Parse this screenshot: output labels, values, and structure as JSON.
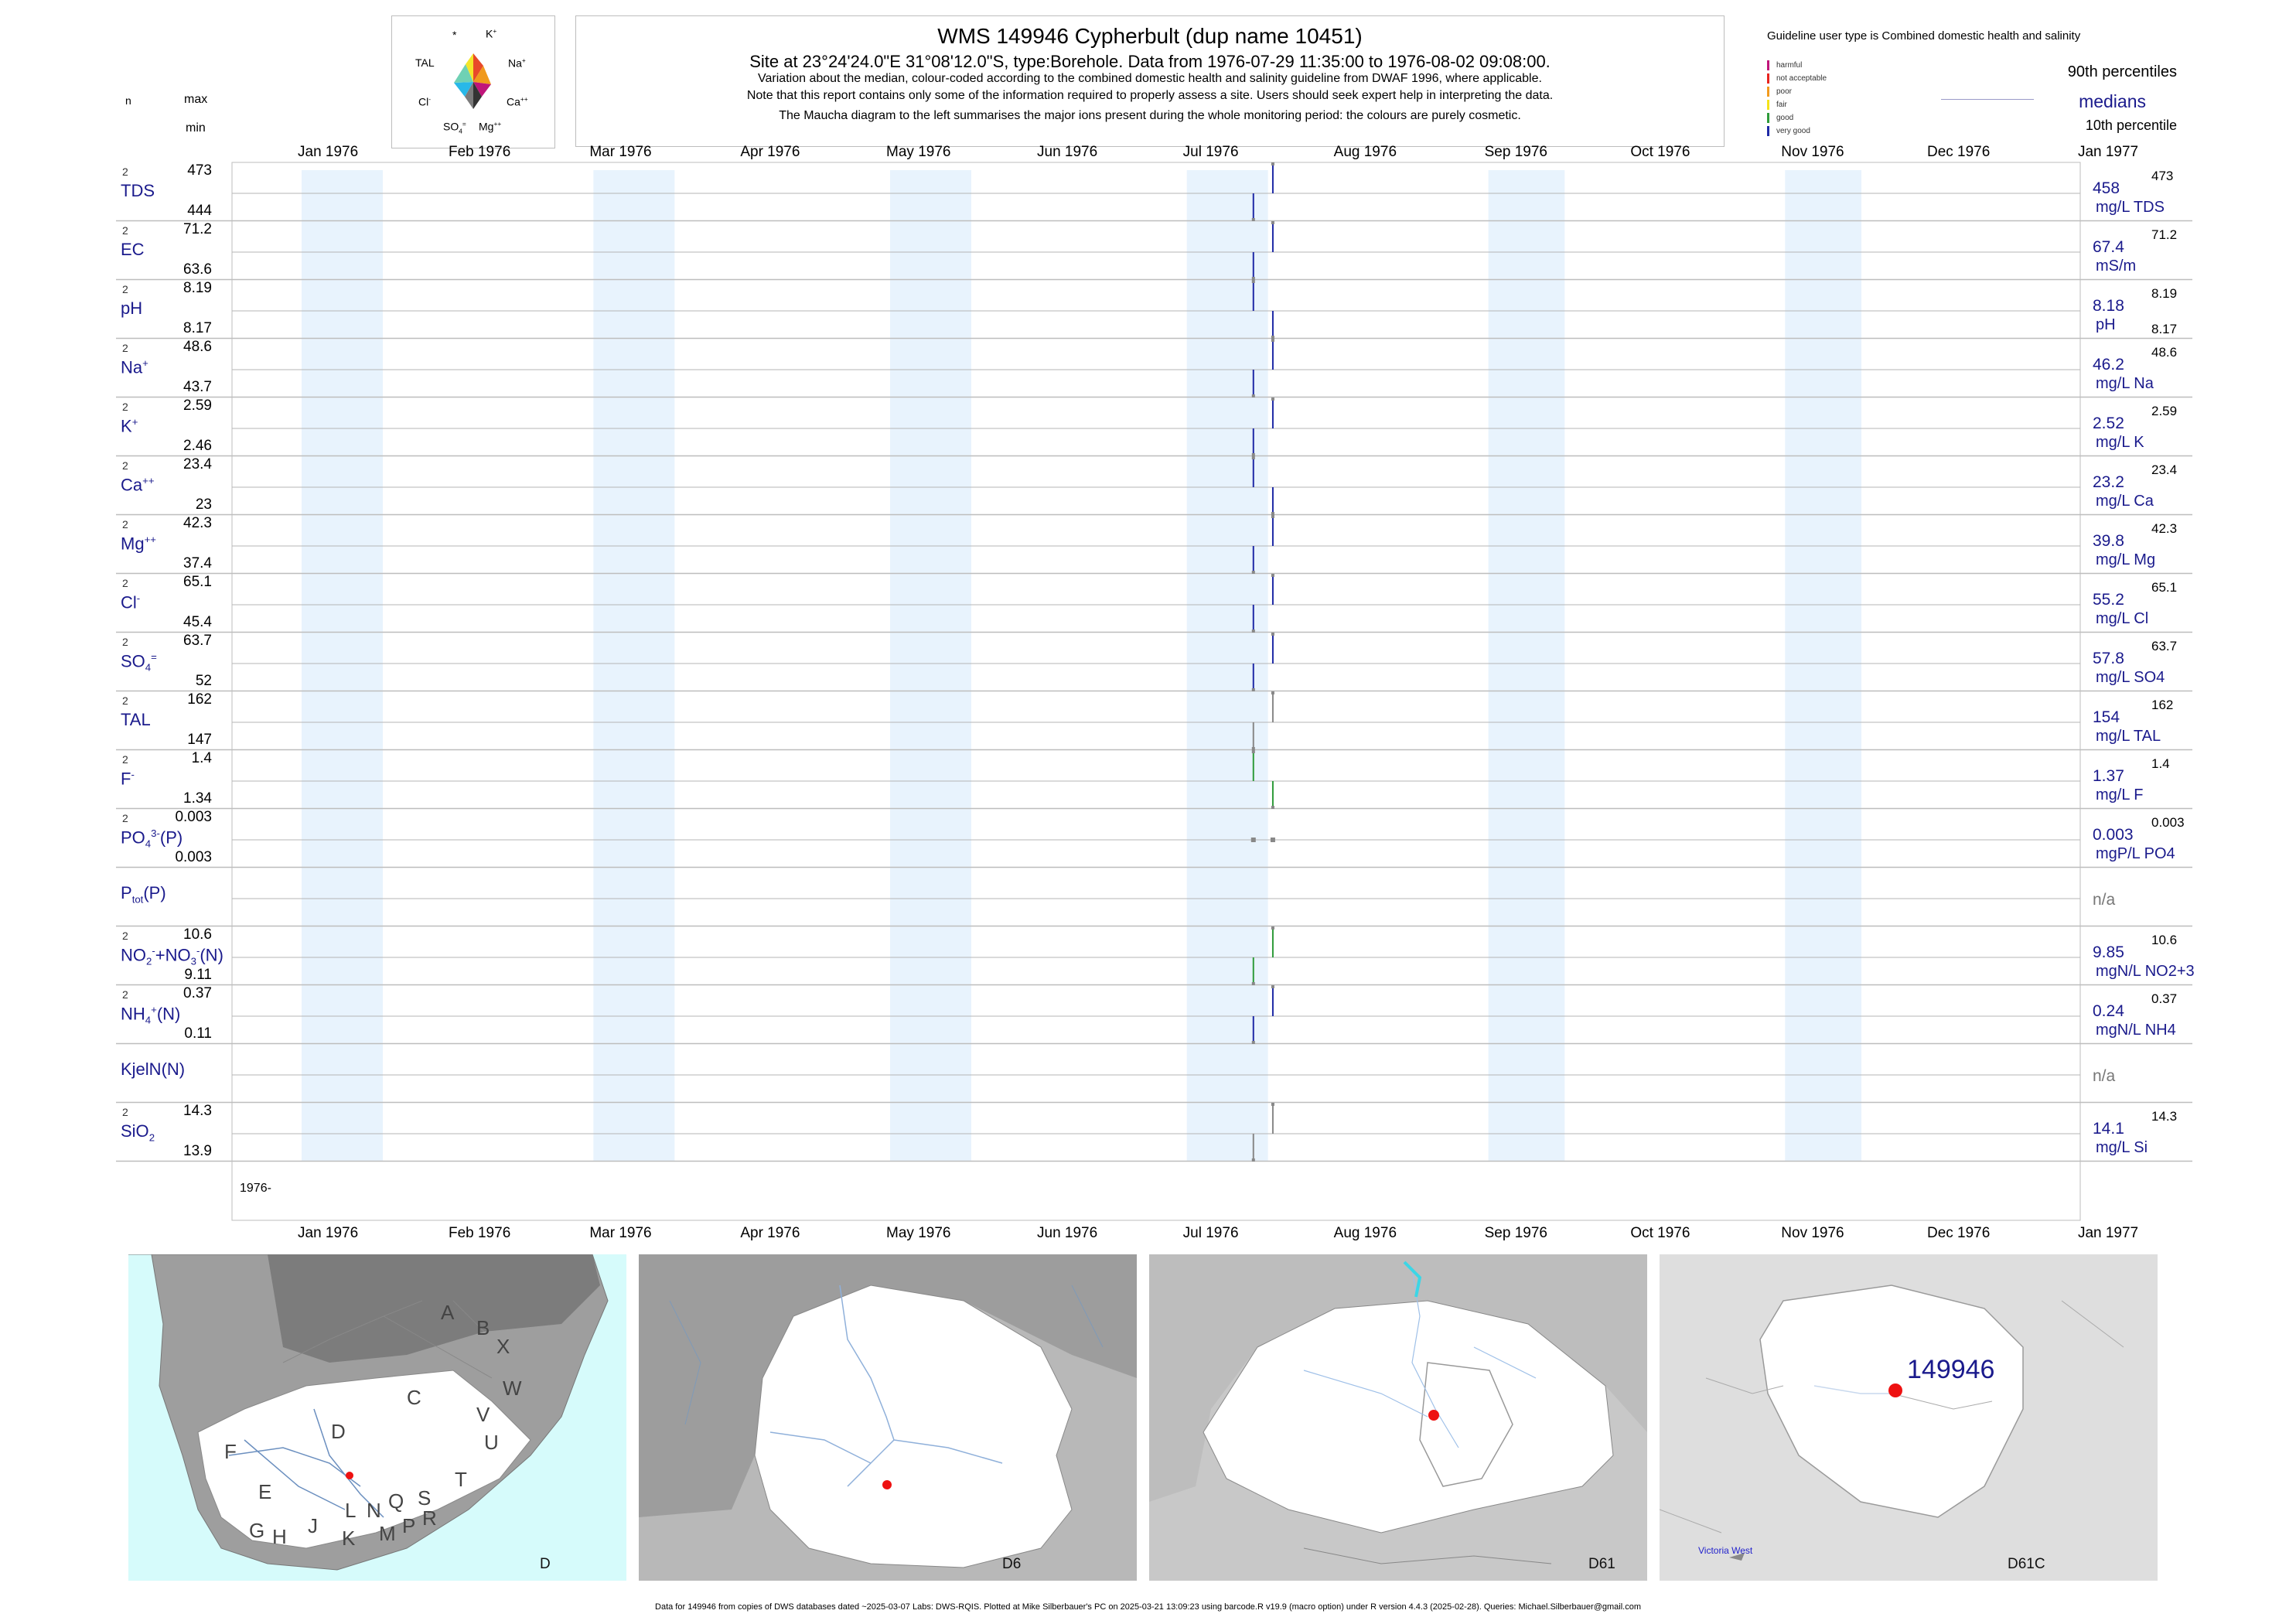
{
  "header": {
    "title": "WMS 149946  Cypherbult (dup name 10451)",
    "subtitle": "Site at 23°24'24.0\"E 31°08'12.0\"S, type:Borehole.  Data from 1976-07-29 11:35:00 to 1976-08-02 09:08:00.",
    "note1": "Variation about the median,  colour-coded according to the combined domestic health and salinity guideline from DWAF 1996, where applicable.",
    "note2": "Note that this report contains only some of the information required to properly assess a site. Users should seek expert help in interpreting the data.",
    "note3": "The Maucha diagram to the left summarises the major ions present during the whole monitoring period: the colours are purely cosmetic."
  },
  "maucha": {
    "labels": {
      "star": "*",
      "k": "K",
      "k_sup": "+",
      "tal": "TAL",
      "na": "Na",
      "na_sup": "+",
      "cl": "Cl",
      "cl_sup": "-",
      "ca": "Ca",
      "ca_sup": "++",
      "so4": "SO",
      "so4_sub": "4",
      "so4_sup": "=",
      "mg": "Mg",
      "mg_sup": "++"
    }
  },
  "guideline": {
    "title": "Guideline user type is Combined domestic health and salinity",
    "classes": [
      {
        "label": "harmful",
        "color": "#c0157a"
      },
      {
        "label": "not acceptable",
        "color": "#e8241f"
      },
      {
        "label": "poor",
        "color": "#f29b1d"
      },
      {
        "label": "fair",
        "color": "#f5e31a"
      },
      {
        "label": "good",
        "color": "#2e9b3a"
      },
      {
        "label": "very good",
        "color": "#1f2aa6"
      }
    ],
    "p90": "90th percentiles",
    "medians": "medians",
    "p10": "10th percentile"
  },
  "left_header": {
    "n": "n",
    "max": "max",
    "min": "min"
  },
  "colors": {
    "navy": "#1a1a8c",
    "band": "#e8f3fd",
    "grid": "#bdbdbd",
    "very_good": "#1f2aa6",
    "good": "#2e9b3a",
    "marker": "#888888",
    "site": "#ee1111",
    "sea": "#d6fbfb"
  },
  "chart_data": {
    "type": "line",
    "x_range": [
      "1976-01-01",
      "1977-01-15"
    ],
    "sample_dates": [
      "1976-07-29",
      "1976-08-02"
    ],
    "months": [
      "Jan 1976",
      "Feb 1976",
      "Mar 1976",
      "Apr 1976",
      "May 1976",
      "Jun 1976",
      "Jul 1976",
      "Aug 1976",
      "Sep 1976",
      "Oct 1976",
      "Nov 1976",
      "Dec 1976",
      "Jan 1977"
    ],
    "year_label": "1976-",
    "series": [
      {
        "label": "TDS",
        "n": "2",
        "max": "473",
        "min": "444",
        "median": "458",
        "unit": "mg/L TDS",
        "rmax": "473",
        "rmin": "",
        "values": [
          444,
          473
        ],
        "color": "very_good"
      },
      {
        "label": "EC",
        "n": "2",
        "max": "71.2",
        "min": "63.6",
        "median": "67.4",
        "unit": "mS/m",
        "rmax": "71.2",
        "rmin": "",
        "values": [
          63.6,
          71.2
        ],
        "color": "very_good"
      },
      {
        "label": "pH",
        "n": "2",
        "max": "8.19",
        "min": "8.17",
        "median": "8.18",
        "unit": "pH",
        "rmax": "8.19",
        "rmin": "8.17",
        "values": [
          8.19,
          8.17
        ],
        "color": "very_good"
      },
      {
        "label": "Na",
        "sup": "+",
        "n": "2",
        "max": "48.6",
        "min": "43.7",
        "median": "46.2",
        "unit": "mg/L Na",
        "rmax": "48.6",
        "rmin": "",
        "values": [
          43.7,
          48.6
        ],
        "color": "very_good"
      },
      {
        "label": "K",
        "sup": "+",
        "n": "2",
        "max": "2.59",
        "min": "2.46",
        "median": "2.52",
        "unit": "mg/L K",
        "rmax": "2.59",
        "rmin": "",
        "values": [
          2.46,
          2.59
        ],
        "color": "very_good"
      },
      {
        "label": "Ca",
        "sup": "++",
        "n": "2",
        "max": "23.4",
        "min": "23",
        "median": "23.2",
        "unit": "mg/L Ca",
        "rmax": "23.4",
        "rmin": "",
        "values": [
          23.4,
          23
        ],
        "color": "very_good"
      },
      {
        "label": "Mg",
        "sup": "++",
        "n": "2",
        "max": "42.3",
        "min": "37.4",
        "median": "39.8",
        "unit": "mg/L Mg",
        "rmax": "42.3",
        "rmin": "",
        "values": [
          37.4,
          42.3
        ],
        "color": "very_good"
      },
      {
        "label": "Cl",
        "sup": "-",
        "n": "2",
        "max": "65.1",
        "min": "45.4",
        "median": "55.2",
        "unit": "mg/L Cl",
        "rmax": "65.1",
        "rmin": "",
        "values": [
          45.4,
          65.1
        ],
        "color": "very_good"
      },
      {
        "label": "SO",
        "sub": "4",
        "sup": "=",
        "n": "2",
        "max": "63.7",
        "min": "52",
        "median": "57.8",
        "unit": "mg/L SO4",
        "rmax": "63.7",
        "rmin": "",
        "values": [
          52,
          63.7
        ],
        "color": "very_good"
      },
      {
        "label": "TAL",
        "n": "2",
        "max": "162",
        "min": "147",
        "median": "154",
        "unit": "mg/L TAL",
        "rmax": "162",
        "rmin": "",
        "values": [
          147,
          162
        ],
        "color": "marker"
      },
      {
        "label": "F",
        "sup": "-",
        "n": "2",
        "max": "1.4",
        "min": "1.34",
        "median": "1.37",
        "unit": "mg/L F",
        "rmax": "1.4",
        "rmin": "",
        "values": [
          1.4,
          1.34
        ],
        "color": "good"
      },
      {
        "label": "PO",
        "sub": "4",
        "sup": "3-",
        "suffix": "(P)",
        "n": "2",
        "max": "0.003",
        "min": "0.003",
        "median": "0.003",
        "unit": "mgP/L PO4",
        "rmax": "0.003",
        "rmin": "",
        "values": [
          0.003,
          0.003
        ],
        "color": "marker"
      },
      {
        "label": "P",
        "sub": "tot",
        "suffix": "(P)",
        "n": "",
        "max": "",
        "min": "",
        "median": "n/a",
        "unit": "",
        "rmax": "",
        "rmin": "",
        "values": [],
        "color": "marker"
      },
      {
        "label": "NO",
        "sub": "2",
        "sup": "-",
        "suffix": "+NO",
        "sub2": "3",
        "sup2": "-",
        "suffix2": "(N)",
        "n": "2",
        "max": "10.6",
        "min": "9.11",
        "median": "9.85",
        "unit": "mgN/L NO2+3",
        "rmax": "10.6",
        "rmin": "",
        "values": [
          9.11,
          10.6
        ],
        "color": "good"
      },
      {
        "label": "NH",
        "sub": "4",
        "sup": "+",
        "suffix": "(N)",
        "n": "2",
        "max": "0.37",
        "min": "0.11",
        "median": "0.24",
        "unit": "mgN/L NH4",
        "rmax": "0.37",
        "rmin": "",
        "values": [
          0.11,
          0.37
        ],
        "color": "very_good"
      },
      {
        "label": "KjelN(N)",
        "n": "",
        "max": "",
        "min": "",
        "median": "n/a",
        "unit": "",
        "rmax": "",
        "rmin": "",
        "values": [],
        "color": "marker"
      },
      {
        "label": "SiO",
        "sub": "2",
        "n": "2",
        "max": "14.3",
        "min": "13.9",
        "median": "14.1",
        "unit": "mg/L Si",
        "rmax": "14.3",
        "rmin": "",
        "values": [
          13.9,
          14.3
        ],
        "color": "marker"
      }
    ]
  },
  "maps": [
    {
      "code": "D",
      "letters": [
        "A",
        "B",
        "X",
        "W",
        "C",
        "V",
        "U",
        "D",
        "F",
        "E",
        "T",
        "G",
        "H",
        "J",
        "K",
        "L",
        "N",
        "Q",
        "S",
        "R",
        "M",
        "P"
      ]
    },
    {
      "code": "D6"
    },
    {
      "code": "D61"
    },
    {
      "code": "D61C",
      "site": "149946",
      "place": "Victoria West"
    }
  ],
  "footer": "Data for 149946 from copies of DWS databases dated ~2025-03-07 Labs: DWS-RQIS. Plotted at Mike Silberbauer's PC on 2025-03-21 13:09:23 using barcode.R v19.9 (macro option) under R version 4.4.3 (2025-02-28). Queries: Michael.Silberbauer@gmail.com"
}
